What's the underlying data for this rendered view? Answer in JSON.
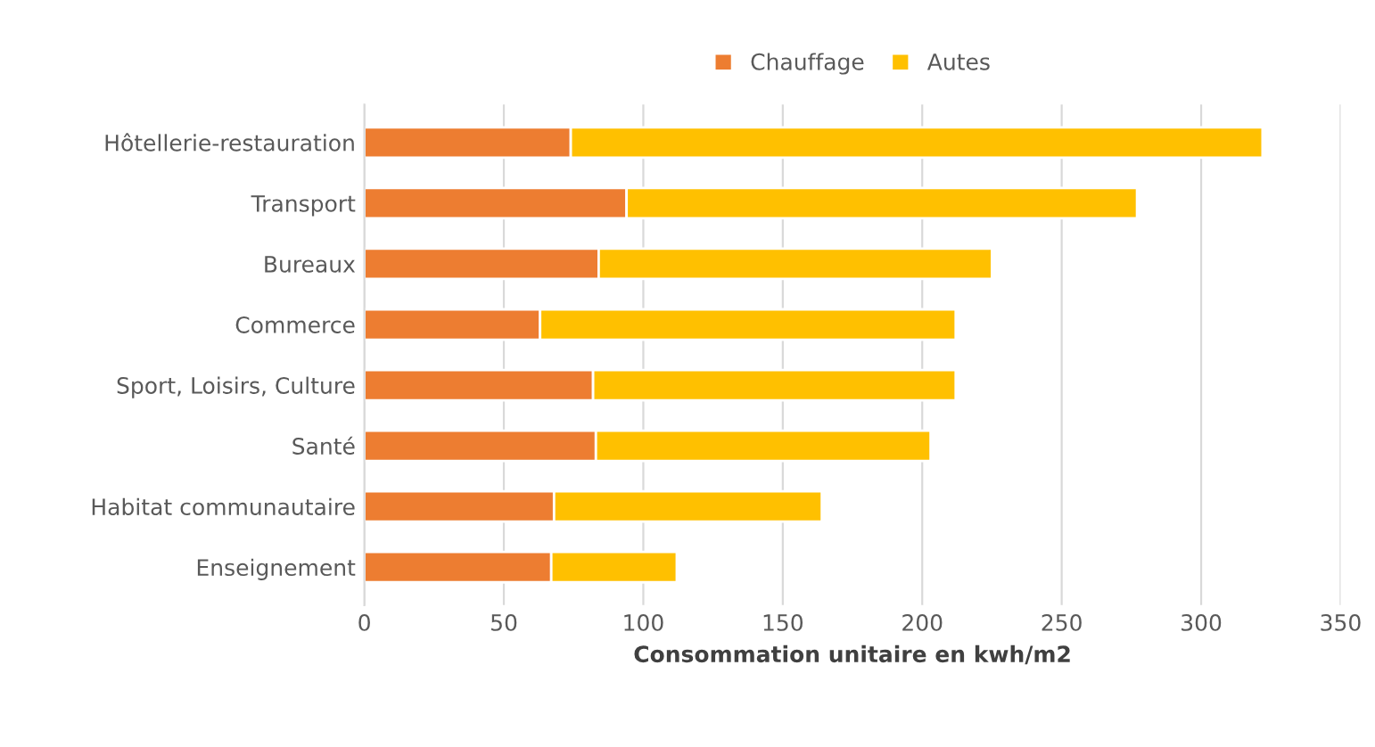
{
  "chart_data": {
    "type": "bar",
    "orientation": "horizontal",
    "stacked": true,
    "categories": [
      "Hôtellerie-restauration",
      "Transport",
      "Bureaux",
      "Commerce",
      "Sport, Loisirs, Culture",
      "Santé",
      "Habitat communautaire",
      "Enseignement"
    ],
    "series": [
      {
        "name": "Chauffage",
        "color": "#ed7d31",
        "values": [
          74,
          94,
          84,
          63,
          82,
          83,
          68,
          67
        ]
      },
      {
        "name": "Autes",
        "color": "#ffc000",
        "values": [
          248,
          183,
          141,
          149,
          130,
          120,
          96,
          45
        ]
      }
    ],
    "xlabel": "Consommation unitaire en kwh/m2",
    "xlim": [
      0,
      350
    ],
    "xticks": [
      0,
      50,
      100,
      150,
      200,
      250,
      300,
      350
    ],
    "grid": "x",
    "legend": "top"
  }
}
